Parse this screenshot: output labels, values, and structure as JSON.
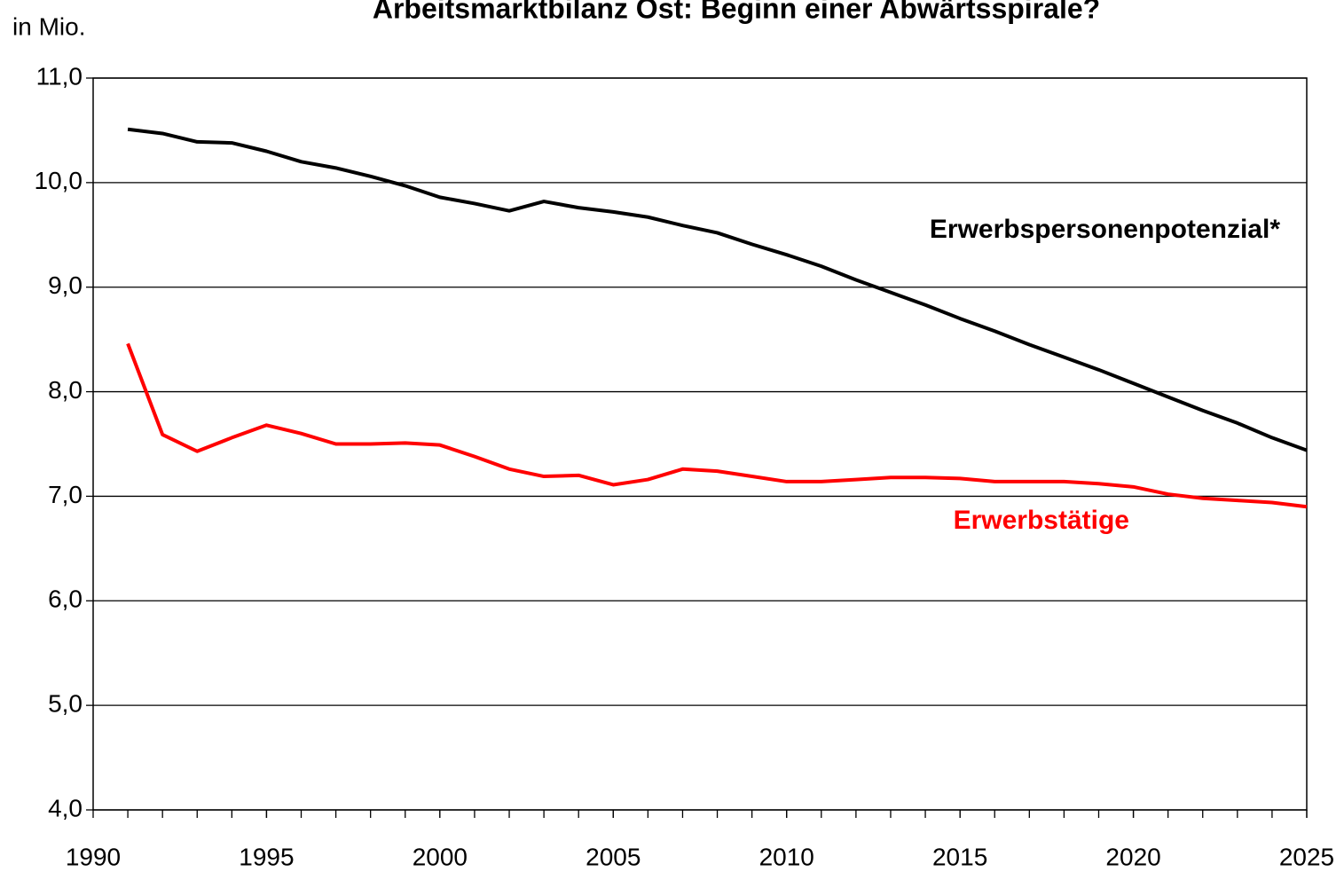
{
  "chart_data": {
    "type": "line",
    "title": "Arbeitsmarktbilanz Ost: Beginn einer Abwärtsspirale?",
    "y_label": "in Mio.",
    "x": [
      1991,
      1992,
      1993,
      1994,
      1995,
      1996,
      1997,
      1998,
      1999,
      2000,
      2001,
      2002,
      2003,
      2004,
      2005,
      2006,
      2007,
      2008,
      2009,
      2010,
      2011,
      2012,
      2013,
      2014,
      2015,
      2016,
      2017,
      2018,
      2019,
      2020,
      2021,
      2022,
      2023,
      2024,
      2025
    ],
    "series": [
      {
        "name": "Erwerbspersonenpotenzial*",
        "color": "#000000",
        "values": [
          10.51,
          10.47,
          10.39,
          10.38,
          10.3,
          10.2,
          10.14,
          10.06,
          9.97,
          9.86,
          9.8,
          9.73,
          9.82,
          9.76,
          9.72,
          9.67,
          9.59,
          9.52,
          9.41,
          9.31,
          9.2,
          9.07,
          8.95,
          8.83,
          8.7,
          8.58,
          8.45,
          8.33,
          8.21,
          8.08,
          7.95,
          7.82,
          7.7,
          7.56,
          7.44
        ]
      },
      {
        "name": "Erwerbstätige",
        "color": "#ff0000",
        "values": [
          8.46,
          7.59,
          7.43,
          7.56,
          7.68,
          7.6,
          7.5,
          7.5,
          7.51,
          7.49,
          7.38,
          7.26,
          7.19,
          7.2,
          7.11,
          7.16,
          7.26,
          7.24,
          7.19,
          7.14,
          7.14,
          7.16,
          7.18,
          7.18,
          7.17,
          7.14,
          7.14,
          7.14,
          7.12,
          7.09,
          7.02,
          6.98,
          6.96,
          6.94,
          6.9
        ]
      }
    ],
    "xlim": [
      1990,
      2025
    ],
    "xticks": [
      1990,
      1995,
      2000,
      2005,
      2010,
      2015,
      2020,
      2025
    ],
    "ylim": [
      4,
      11
    ],
    "yticks": [
      {
        "value": 4,
        "label": "4,0"
      },
      {
        "value": 5,
        "label": "5,0"
      },
      {
        "value": 6,
        "label": "6,0"
      },
      {
        "value": 7,
        "label": "7,0"
      },
      {
        "value": 8,
        "label": "8,0"
      },
      {
        "value": 9,
        "label": "9,0"
      },
      {
        "value": 10,
        "label": "10,0"
      },
      {
        "value": 11,
        "label": "11,0"
      }
    ],
    "grid": true
  }
}
